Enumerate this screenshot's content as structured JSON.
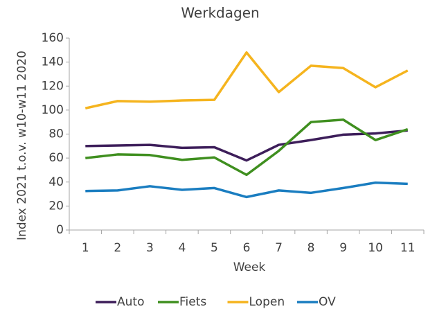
{
  "chart_data": {
    "type": "line",
    "title": "Werkdagen",
    "x_label": "Week",
    "y_label": "Index 2021 t.o.v. w10-w11 2020",
    "categories": [
      1,
      2,
      3,
      4,
      5,
      6,
      7,
      8,
      9,
      10,
      11
    ],
    "series": [
      {
        "name": "Auto",
        "color": "#3d1e5a",
        "values": [
          70,
          70.5,
          71,
          68.5,
          69,
          58,
          71,
          75,
          79.5,
          80.5,
          83
        ]
      },
      {
        "name": "Fiets",
        "color": "#3f8f1f",
        "values": [
          60,
          63,
          62.5,
          58.5,
          60.5,
          46,
          66,
          90,
          92,
          75,
          84
        ]
      },
      {
        "name": "Lopen",
        "color": "#f5b41e",
        "values": [
          101.5,
          107.5,
          107,
          108,
          108.5,
          148,
          115,
          137,
          135,
          119,
          133
        ]
      },
      {
        "name": "OV",
        "color": "#1a7dc0",
        "values": [
          32.5,
          33,
          36.5,
          33.5,
          35,
          27.5,
          33,
          31,
          35,
          39.5,
          38.5
        ]
      }
    ],
    "ylim": [
      0,
      160
    ],
    "yticks": [
      0,
      20,
      40,
      60,
      80,
      100,
      120,
      140,
      160
    ],
    "grid": false,
    "legend": "bottom"
  }
}
